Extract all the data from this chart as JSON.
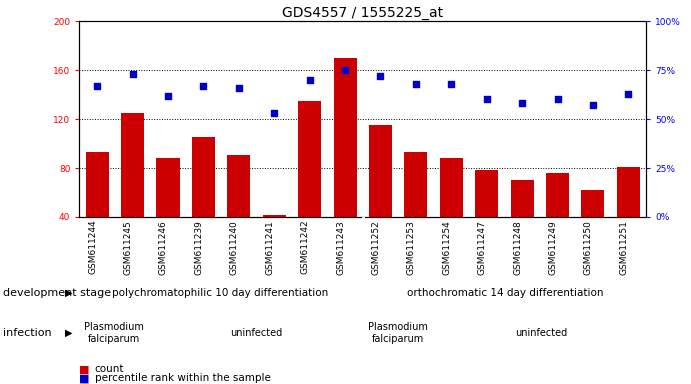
{
  "title": "GDS4557 / 1555225_at",
  "samples": [
    "GSM611244",
    "GSM611245",
    "GSM611246",
    "GSM611239",
    "GSM611240",
    "GSM611241",
    "GSM611242",
    "GSM611243",
    "GSM611252",
    "GSM611253",
    "GSM611254",
    "GSM611247",
    "GSM611248",
    "GSM611249",
    "GSM611250",
    "GSM611251"
  ],
  "counts": [
    93,
    125,
    88,
    105,
    91,
    42,
    135,
    170,
    115,
    93,
    88,
    78,
    70,
    76,
    62,
    81
  ],
  "percentiles": [
    67,
    73,
    62,
    67,
    66,
    53,
    70,
    75,
    72,
    68,
    68,
    60,
    58,
    60,
    57,
    63
  ],
  "ylim_left": [
    40,
    200
  ],
  "ylim_right": [
    0,
    100
  ],
  "yticks_left": [
    40,
    80,
    120,
    160,
    200
  ],
  "yticks_right": [
    0,
    25,
    50,
    75,
    100
  ],
  "bar_color": "#cc0000",
  "dot_color": "#0000cc",
  "bg_color": "#ffffff",
  "xticklabel_bg": "#d0d0d0",
  "dev_stage_color": "#88ee88",
  "infection_pf_color": "#ddaadd",
  "infection_un_color": "#ee88ee",
  "dev_stage_label": "development stage",
  "infection_label": "infection",
  "dev_groups": [
    {
      "label": "polychromatophilic 10 day differentiation",
      "start": 0,
      "end": 8
    },
    {
      "label": "orthochromatic 14 day differentiation",
      "start": 8,
      "end": 16
    }
  ],
  "inf_groups": [
    {
      "label": "Plasmodium\nfalciparum",
      "start": 0,
      "end": 2,
      "type": "pf"
    },
    {
      "label": "uninfected",
      "start": 2,
      "end": 8,
      "type": "un"
    },
    {
      "label": "Plasmodium\nfalciparum",
      "start": 8,
      "end": 10,
      "type": "pf"
    },
    {
      "label": "uninfected",
      "start": 10,
      "end": 16,
      "type": "un"
    }
  ],
  "legend_count_label": "count",
  "legend_pct_label": "percentile rank within the sample",
  "title_fontsize": 10,
  "tick_fontsize": 6.5,
  "band_fontsize": 7.5,
  "inf_fontsize": 7,
  "legend_fontsize": 7.5,
  "label_fontsize": 8
}
